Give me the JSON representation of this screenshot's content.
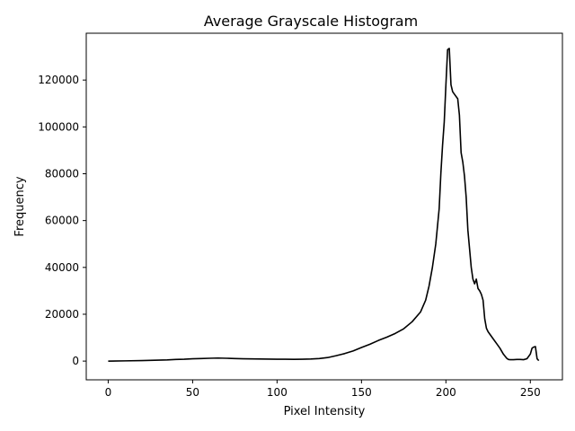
{
  "chart_data": {
    "type": "line",
    "title": "Average Grayscale Histogram",
    "xlabel": "Pixel Intensity",
    "ylabel": "Frequency",
    "xlim": [
      -13,
      269
    ],
    "ylim": [
      -8000,
      140000
    ],
    "xticks": [
      0,
      50,
      100,
      150,
      200,
      250
    ],
    "yticks": [
      0,
      20000,
      40000,
      60000,
      80000,
      100000,
      120000
    ],
    "grid": false,
    "line_color": "#000000",
    "series": [
      {
        "x": [
          0,
          10,
          20,
          30,
          35,
          40,
          45,
          50,
          55,
          60,
          65,
          70,
          75,
          80,
          85,
          90,
          95,
          100,
          105,
          110,
          115,
          120,
          125,
          130,
          135,
          140,
          145,
          150,
          155,
          160,
          165,
          170,
          175,
          180,
          185,
          188,
          190,
          192,
          194,
          196,
          197,
          198,
          199,
          200,
          201,
          202,
          203,
          204,
          205,
          207,
          208,
          209,
          210,
          211,
          212,
          213,
          214,
          215,
          216,
          217,
          218,
          219,
          220,
          221,
          222,
          223,
          224,
          225,
          226,
          228,
          230,
          232,
          234,
          236,
          237,
          238,
          240,
          242,
          244,
          246,
          248,
          250,
          251,
          252,
          253,
          254,
          255
        ],
        "y": [
          0,
          100,
          200,
          400,
          500,
          700,
          800,
          1000,
          1100,
          1200,
          1300,
          1200,
          1100,
          1000,
          950,
          900,
          850,
          800,
          800,
          750,
          800,
          900,
          1100,
          1500,
          2300,
          3200,
          4300,
          5800,
          7200,
          8800,
          10200,
          11800,
          13800,
          16800,
          21000,
          26000,
          32000,
          40000,
          50000,
          65000,
          80000,
          92000,
          102000,
          118000,
          133000,
          133500,
          118000,
          115000,
          114000,
          112000,
          105000,
          89000,
          85000,
          79000,
          70000,
          56000,
          48000,
          40000,
          35000,
          33000,
          35000,
          31000,
          30000,
          28500,
          26000,
          18000,
          14000,
          12500,
          11500,
          9500,
          7500,
          5500,
          3000,
          1200,
          700,
          600,
          600,
          700,
          700,
          600,
          1000,
          3000,
          5500,
          6000,
          6200,
          1000,
          200
        ]
      }
    ]
  }
}
